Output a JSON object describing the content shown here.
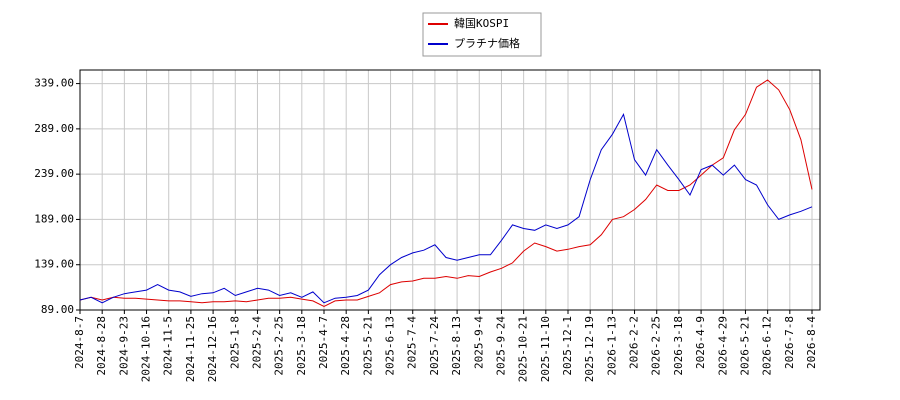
{
  "chart_data": {
    "type": "line",
    "categories": [
      "2024-8-7",
      null,
      "2024-8-28",
      null,
      "2024-9-23",
      null,
      "2024-10-16",
      null,
      "2024-11-5",
      null,
      "2024-11-25",
      null,
      "2024-12-16",
      null,
      "2025-1-8",
      null,
      "2025-2-4",
      null,
      "2025-2-25",
      null,
      "2025-3-18",
      null,
      "2025-4-7",
      null,
      "2025-4-28",
      null,
      "2025-5-21",
      null,
      "2025-6-13",
      null,
      "2025-7-4",
      null,
      "2025-7-24",
      null,
      "2025-8-13",
      null,
      "2025-9-4",
      null,
      "2025-9-24",
      null,
      "2025-10-21",
      null,
      "2025-11-10",
      null,
      "2025-12-1",
      null,
      "2025-12-19",
      null,
      "2026-1-13",
      null,
      "2026-2-2",
      null,
      "2026-2-25",
      null,
      "2026-3-18",
      null,
      "2026-4-9",
      null,
      "2026-4-29",
      null,
      "2026-5-21",
      null,
      "2026-6-12",
      null,
      "2026-7-8",
      null,
      "2026-8-4"
    ],
    "series": [
      {
        "name": "韓国KOSPI",
        "color": "#dd0000",
        "values": [
          100,
          103,
          100,
          103,
          102,
          102,
          101,
          100,
          99,
          99,
          98,
          97,
          98,
          98,
          99,
          98,
          100,
          102,
          102,
          103,
          101,
          99,
          93,
          99,
          100,
          100,
          104,
          108,
          117,
          120,
          121,
          124,
          124,
          126,
          124,
          127,
          126,
          131,
          135,
          141,
          154,
          163,
          159,
          154,
          156,
          159,
          161,
          172,
          189,
          192,
          200,
          211,
          227,
          221,
          221,
          227,
          238,
          249,
          257,
          288,
          305,
          335,
          343,
          332,
          310,
          277,
          222
        ]
      },
      {
        "name": "プラチナ価格",
        "color": "#0000cc",
        "values": [
          100,
          103,
          97,
          103,
          107,
          109,
          111,
          117,
          111,
          109,
          104,
          107,
          108,
          113,
          105,
          109,
          113,
          111,
          105,
          108,
          103,
          109,
          97,
          102,
          103,
          105,
          111,
          128,
          139,
          147,
          152,
          155,
          161,
          147,
          144,
          147,
          150,
          150,
          166,
          183,
          179,
          177,
          183,
          179,
          183,
          192,
          233,
          266,
          283,
          305,
          255,
          238,
          266,
          249,
          233,
          216,
          244,
          249,
          238,
          249,
          233,
          227,
          205,
          189,
          194,
          198,
          203
        ]
      }
    ],
    "ylim": [
      89,
      354
    ],
    "yticks": [
      {
        "value": 89,
        "label": "89.00"
      },
      {
        "value": 139,
        "label": "139.00"
      },
      {
        "value": 189,
        "label": "189.00"
      },
      {
        "value": 239,
        "label": "239.00"
      },
      {
        "value": 289,
        "label": "289.00"
      },
      {
        "value": 339,
        "label": "339.00"
      }
    ],
    "grid": true,
    "legend": "top"
  }
}
